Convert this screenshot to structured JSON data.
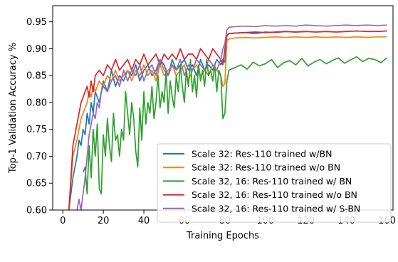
{
  "chart_data": {
    "type": "line",
    "title": "",
    "xlabel": "Training Epochs",
    "ylabel": "Top-1 Validation Accuracy %",
    "xlim": [
      -5,
      163
    ],
    "ylim": [
      0.6,
      0.98
    ],
    "xticks": [
      0,
      20,
      40,
      60,
      80,
      100,
      120,
      140,
      160
    ],
    "yticks": [
      0.6,
      0.65,
      0.7,
      0.75,
      0.8,
      0.85,
      0.9,
      0.95
    ],
    "xtick_labels": [
      "0",
      "20",
      "40",
      "60",
      "80",
      "100",
      "120",
      "140",
      "160"
    ],
    "ytick_labels": [
      "0.60",
      "0.65",
      "0.70",
      "0.75",
      "0.80",
      "0.85",
      "0.90",
      "0.95"
    ],
    "grid": false,
    "legend_position": "lower-right",
    "series": [
      {
        "name": "Scale 32: Res-110 trained w/BN",
        "color": "#1f77b4",
        "x": [
          3,
          5,
          7,
          8,
          9,
          10,
          11,
          12,
          13,
          14,
          15,
          16,
          18,
          20,
          22,
          24,
          26,
          28,
          30,
          32,
          34,
          36,
          38,
          40,
          42,
          44,
          46,
          48,
          50,
          52,
          54,
          56,
          58,
          60,
          62,
          64,
          66,
          68,
          70,
          72,
          74,
          76,
          78,
          79,
          80,
          81,
          82,
          85,
          90,
          95,
          100,
          105,
          110,
          115,
          120
        ],
        "y": [
          0.6,
          0.66,
          0.7,
          0.73,
          0.72,
          0.75,
          0.74,
          0.78,
          0.76,
          0.8,
          0.78,
          0.82,
          0.8,
          0.84,
          0.82,
          0.86,
          0.83,
          0.85,
          0.84,
          0.86,
          0.85,
          0.87,
          0.84,
          0.86,
          0.87,
          0.85,
          0.86,
          0.88,
          0.87,
          0.85,
          0.88,
          0.86,
          0.87,
          0.88,
          0.86,
          0.87,
          0.85,
          0.88,
          0.86,
          0.87,
          0.86,
          0.88,
          0.87,
          0.88,
          0.875,
          0.925,
          0.928,
          0.929,
          0.93,
          0.928,
          0.931,
          0.93,
          0.932,
          0.931,
          0.932
        ]
      },
      {
        "name": "Scale 32: Res-110 trained w/o BN",
        "color": "#ff7f0e",
        "x": [
          3,
          5,
          7,
          8,
          9,
          10,
          11,
          12,
          13,
          14,
          15,
          16,
          18,
          20,
          22,
          24,
          26,
          28,
          30,
          32,
          34,
          36,
          38,
          40,
          42,
          44,
          46,
          48,
          50,
          52,
          54,
          56,
          58,
          60,
          62,
          64,
          66,
          68,
          70,
          72,
          74,
          76,
          78,
          79,
          80,
          81,
          82,
          85,
          90,
          95,
          100,
          105,
          110,
          115,
          120,
          125,
          130,
          135,
          140,
          145,
          150,
          155,
          160
        ],
        "y": [
          0.6,
          0.7,
          0.73,
          0.75,
          0.77,
          0.78,
          0.79,
          0.8,
          0.82,
          0.81,
          0.83,
          0.82,
          0.84,
          0.83,
          0.85,
          0.84,
          0.86,
          0.84,
          0.85,
          0.86,
          0.84,
          0.86,
          0.85,
          0.87,
          0.85,
          0.86,
          0.84,
          0.87,
          0.85,
          0.86,
          0.87,
          0.85,
          0.86,
          0.87,
          0.84,
          0.86,
          0.87,
          0.85,
          0.86,
          0.85,
          0.87,
          0.86,
          0.85,
          0.83,
          0.835,
          0.915,
          0.918,
          0.92,
          0.921,
          0.92,
          0.921,
          0.922,
          0.921,
          0.922,
          0.921,
          0.922,
          0.921,
          0.922,
          0.921,
          0.922,
          0.921,
          0.922,
          0.922
        ]
      },
      {
        "name": "Scale 32, 16: Res-110 trained w/ BN",
        "color": "#2ca02c",
        "x": [
          10,
          11,
          12,
          13,
          14,
          15,
          16,
          17,
          18,
          19,
          20,
          21,
          22,
          23,
          24,
          25,
          26,
          27,
          28,
          29,
          30,
          31,
          32,
          33,
          34,
          35,
          36,
          37,
          38,
          39,
          40,
          41,
          42,
          43,
          44,
          45,
          46,
          47,
          48,
          49,
          50,
          51,
          52,
          53,
          54,
          55,
          56,
          57,
          58,
          59,
          60,
          61,
          62,
          63,
          64,
          65,
          66,
          67,
          68,
          69,
          70,
          71,
          72,
          73,
          74,
          75,
          76,
          77,
          78,
          79,
          80,
          81,
          82,
          85,
          88,
          91,
          94,
          97,
          100,
          103,
          106,
          109,
          112,
          115,
          118,
          121,
          124,
          127,
          130,
          133,
          136,
          139,
          142,
          145,
          148,
          151,
          154,
          157,
          160
        ],
        "y": [
          0.67,
          0.68,
          0.63,
          0.72,
          0.66,
          0.75,
          0.7,
          0.76,
          0.64,
          0.63,
          0.74,
          0.7,
          0.77,
          0.72,
          0.69,
          0.78,
          0.73,
          0.74,
          0.7,
          0.75,
          0.73,
          0.82,
          0.78,
          0.74,
          0.8,
          0.77,
          0.71,
          0.68,
          0.79,
          0.73,
          0.82,
          0.76,
          0.8,
          0.78,
          0.83,
          0.77,
          0.8,
          0.85,
          0.79,
          0.82,
          0.8,
          0.86,
          0.78,
          0.84,
          0.81,
          0.79,
          0.85,
          0.82,
          0.87,
          0.83,
          0.8,
          0.86,
          0.83,
          0.88,
          0.82,
          0.85,
          0.81,
          0.87,
          0.84,
          0.86,
          0.83,
          0.88,
          0.85,
          0.86,
          0.84,
          0.87,
          0.82,
          0.86,
          0.85,
          0.77,
          0.78,
          0.84,
          0.86,
          0.865,
          0.87,
          0.862,
          0.875,
          0.868,
          0.872,
          0.88,
          0.865,
          0.874,
          0.878,
          0.87,
          0.882,
          0.868,
          0.875,
          0.88,
          0.872,
          0.878,
          0.883,
          0.873,
          0.879,
          0.885,
          0.876,
          0.882,
          0.88,
          0.874,
          0.883
        ]
      },
      {
        "name": "Scale 32, 16: Res-110 trained w/o BN",
        "color": "#d62728",
        "x": [
          3,
          5,
          7,
          8,
          9,
          10,
          11,
          12,
          13,
          14,
          15,
          16,
          18,
          20,
          22,
          24,
          26,
          28,
          30,
          32,
          34,
          36,
          38,
          40,
          42,
          44,
          46,
          48,
          50,
          52,
          54,
          56,
          58,
          60,
          62,
          64,
          66,
          68,
          70,
          72,
          74,
          76,
          78,
          79,
          80,
          81,
          82,
          85,
          90,
          95,
          100,
          105,
          110,
          115,
          120,
          125,
          130,
          135,
          140,
          145,
          150,
          155,
          160
        ],
        "y": [
          0.6,
          0.72,
          0.76,
          0.78,
          0.8,
          0.81,
          0.82,
          0.83,
          0.81,
          0.84,
          0.82,
          0.85,
          0.86,
          0.85,
          0.87,
          0.86,
          0.88,
          0.86,
          0.87,
          0.88,
          0.86,
          0.88,
          0.87,
          0.89,
          0.87,
          0.88,
          0.89,
          0.87,
          0.89,
          0.88,
          0.89,
          0.88,
          0.9,
          0.88,
          0.89,
          0.89,
          0.88,
          0.9,
          0.89,
          0.88,
          0.9,
          0.89,
          0.88,
          0.87,
          0.9,
          0.925,
          0.928,
          0.929,
          0.93,
          0.931,
          0.93,
          0.931,
          0.932,
          0.931,
          0.932,
          0.931,
          0.932,
          0.931,
          0.932,
          0.933,
          0.932,
          0.932,
          0.933
        ]
      },
      {
        "name": "Scale 32, 16: Res-110 trained w/ S-BN",
        "color": "#9467bd",
        "x": [
          7,
          8,
          9,
          10,
          11,
          12,
          13,
          14,
          15,
          16,
          17,
          18,
          19,
          20,
          22,
          24,
          26,
          28,
          30,
          32,
          34,
          36,
          38,
          40,
          42,
          44,
          46,
          48,
          50,
          52,
          54,
          56,
          58,
          60,
          62,
          64,
          66,
          68,
          70,
          72,
          74,
          76,
          78,
          79,
          80,
          81,
          82,
          85,
          90,
          95,
          100,
          105,
          110,
          115,
          120,
          125,
          130,
          135,
          140,
          145,
          150,
          155,
          160
        ],
        "y": [
          0.6,
          0.62,
          0.6,
          0.63,
          0.66,
          0.7,
          0.74,
          0.76,
          0.78,
          0.77,
          0.8,
          0.79,
          0.82,
          0.83,
          0.82,
          0.84,
          0.85,
          0.83,
          0.86,
          0.84,
          0.86,
          0.85,
          0.87,
          0.84,
          0.86,
          0.87,
          0.85,
          0.88,
          0.86,
          0.85,
          0.87,
          0.86,
          0.88,
          0.85,
          0.87,
          0.86,
          0.88,
          0.87,
          0.86,
          0.88,
          0.87,
          0.86,
          0.88,
          0.9,
          0.91,
          0.935,
          0.94,
          0.941,
          0.942,
          0.941,
          0.943,
          0.942,
          0.943,
          0.942,
          0.944,
          0.943,
          0.942,
          0.943,
          0.944,
          0.943,
          0.944,
          0.943,
          0.944
        ]
      }
    ]
  }
}
